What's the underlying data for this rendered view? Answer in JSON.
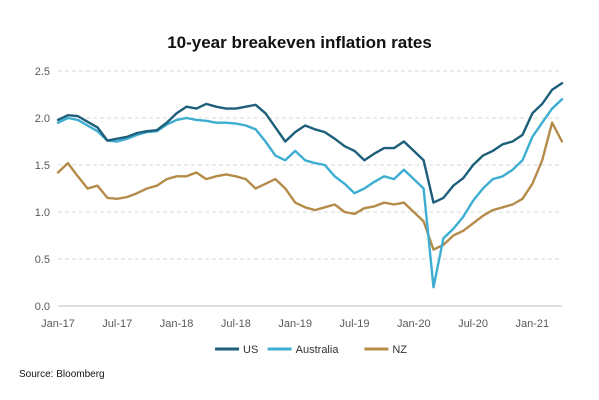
{
  "chart_data": {
    "type": "line",
    "title": "10-year breakeven inflation rates",
    "source": "Source: Bloomberg",
    "xlabel": "",
    "ylabel": "",
    "ylim": [
      0,
      2.5
    ],
    "y_ticks": [
      "0.0",
      "0.5",
      "1.0",
      "1.5",
      "2.0",
      "2.5"
    ],
    "x_ticks": [
      "Jan-17",
      "Jul-17",
      "Jan-18",
      "Jul-18",
      "Jan-19",
      "Jul-19",
      "Jan-20",
      "Jul-20",
      "Jan-21"
    ],
    "grid": "horizontal dashed",
    "legend_position": "bottom-center",
    "x": [
      "Jan-17",
      "Feb-17",
      "Mar-17",
      "Apr-17",
      "May-17",
      "Jun-17",
      "Jul-17",
      "Aug-17",
      "Sep-17",
      "Oct-17",
      "Nov-17",
      "Dec-17",
      "Jan-18",
      "Feb-18",
      "Mar-18",
      "Apr-18",
      "May-18",
      "Jun-18",
      "Jul-18",
      "Aug-18",
      "Sep-18",
      "Oct-18",
      "Nov-18",
      "Dec-18",
      "Jan-19",
      "Feb-19",
      "Mar-19",
      "Apr-19",
      "May-19",
      "Jun-19",
      "Jul-19",
      "Aug-19",
      "Sep-19",
      "Oct-19",
      "Nov-19",
      "Dec-19",
      "Jan-20",
      "Feb-20",
      "Mar-20",
      "Apr-20",
      "May-20",
      "Jun-20",
      "Jul-20",
      "Aug-20",
      "Sep-20",
      "Oct-20",
      "Nov-20",
      "Dec-20",
      "Jan-21",
      "Feb-21",
      "Mar-21",
      "Apr-21"
    ],
    "series": [
      {
        "name": "US",
        "color": "#1d5f7a",
        "values": [
          1.98,
          2.03,
          2.02,
          1.96,
          1.9,
          1.76,
          1.78,
          1.8,
          1.84,
          1.86,
          1.87,
          1.95,
          2.05,
          2.12,
          2.1,
          2.15,
          2.12,
          2.1,
          2.1,
          2.12,
          2.14,
          2.05,
          1.9,
          1.75,
          1.85,
          1.92,
          1.88,
          1.85,
          1.78,
          1.7,
          1.65,
          1.55,
          1.62,
          1.68,
          1.68,
          1.75,
          1.65,
          1.55,
          1.1,
          1.15,
          1.28,
          1.36,
          1.5,
          1.6,
          1.65,
          1.72,
          1.75,
          1.82,
          2.05,
          2.15,
          2.3,
          2.37
        ]
      },
      {
        "name": "Australia",
        "color": "#3daed1",
        "values": [
          1.95,
          2.0,
          1.98,
          1.92,
          1.86,
          1.76,
          1.75,
          1.78,
          1.82,
          1.85,
          1.86,
          1.93,
          1.98,
          2.0,
          1.98,
          1.97,
          1.95,
          1.95,
          1.94,
          1.92,
          1.88,
          1.75,
          1.6,
          1.55,
          1.65,
          1.55,
          1.52,
          1.5,
          1.38,
          1.3,
          1.2,
          1.25,
          1.32,
          1.38,
          1.35,
          1.45,
          1.35,
          1.25,
          0.2,
          0.72,
          0.82,
          0.95,
          1.12,
          1.25,
          1.35,
          1.38,
          1.45,
          1.55,
          1.8,
          1.95,
          2.1,
          2.2
        ]
      },
      {
        "name": "NZ",
        "color": "#b58b4a",
        "values": [
          1.42,
          1.52,
          1.38,
          1.25,
          1.28,
          1.15,
          1.14,
          1.16,
          1.2,
          1.25,
          1.28,
          1.35,
          1.38,
          1.38,
          1.42,
          1.35,
          1.38,
          1.4,
          1.38,
          1.35,
          1.25,
          1.3,
          1.35,
          1.25,
          1.1,
          1.05,
          1.02,
          1.05,
          1.08,
          1.0,
          0.98,
          1.04,
          1.06,
          1.1,
          1.08,
          1.1,
          1.0,
          0.9,
          0.6,
          0.65,
          0.75,
          0.8,
          0.88,
          0.96,
          1.02,
          1.05,
          1.08,
          1.14,
          1.3,
          1.55,
          1.95,
          1.75
        ]
      }
    ]
  }
}
